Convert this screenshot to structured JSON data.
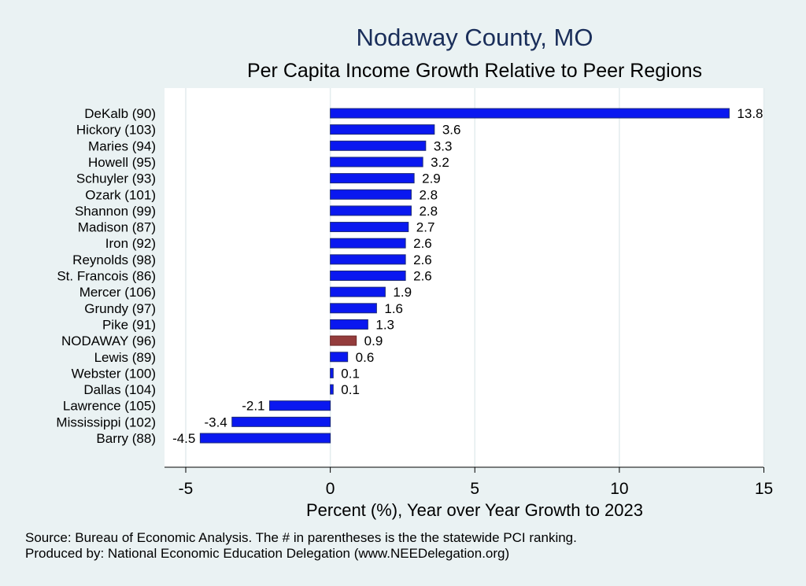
{
  "chart_data": {
    "type": "bar",
    "orientation": "horizontal",
    "title": "Nodaway County, MO",
    "subtitle": "Per Capita Income Growth Relative to Peer Regions",
    "xlabel": "Percent (%), Year over Year Growth to 2023",
    "ylabel": "",
    "xlim": [
      -5,
      15
    ],
    "xticks": [
      -5,
      0,
      5,
      10,
      15
    ],
    "grid": true,
    "categories": [
      "DeKalb (90)",
      "Hickory (103)",
      "Maries (94)",
      "Howell (95)",
      "Schuyler (93)",
      "Ozark (101)",
      "Shannon (99)",
      "Madison (87)",
      "Iron (92)",
      "Reynolds (98)",
      "St. Francois (86)",
      "Mercer (106)",
      "Grundy (97)",
      "Pike (91)",
      "NODAWAY (96)",
      "Lewis (89)",
      "Webster (100)",
      "Dallas (104)",
      "Lawrence (105)",
      "Mississippi (102)",
      "Barry (88)"
    ],
    "values": [
      13.8,
      3.6,
      3.3,
      3.2,
      2.9,
      2.8,
      2.8,
      2.7,
      2.6,
      2.6,
      2.6,
      1.9,
      1.6,
      1.3,
      0.9,
      0.6,
      0.1,
      0.1,
      -2.1,
      -3.4,
      -4.5
    ],
    "value_labels": [
      "13.8",
      "3.6",
      "3.3",
      "3.2",
      "2.9",
      "2.8",
      "2.8",
      "2.7",
      "2.6",
      "2.6",
      "2.6",
      "1.9",
      "1.6",
      "1.3",
      "0.9",
      "0.6",
      "0.1",
      "0.1",
      "-2.1",
      "-3.4",
      "-4.5"
    ],
    "highlight": "NODAWAY (96)",
    "colors": {
      "bar": "#0a18f0",
      "bar_edge": "#1c2a78",
      "highlight": "#943c3c",
      "grid": "#ffffff",
      "title": "#1a2e5a"
    }
  },
  "source_note": "Source: Bureau of Economic Analysis. The # in parentheses is the the statewide PCI ranking.",
  "produced_note": "Produced by: National Economic Education Delegation (www.NEEDelegation.org)"
}
